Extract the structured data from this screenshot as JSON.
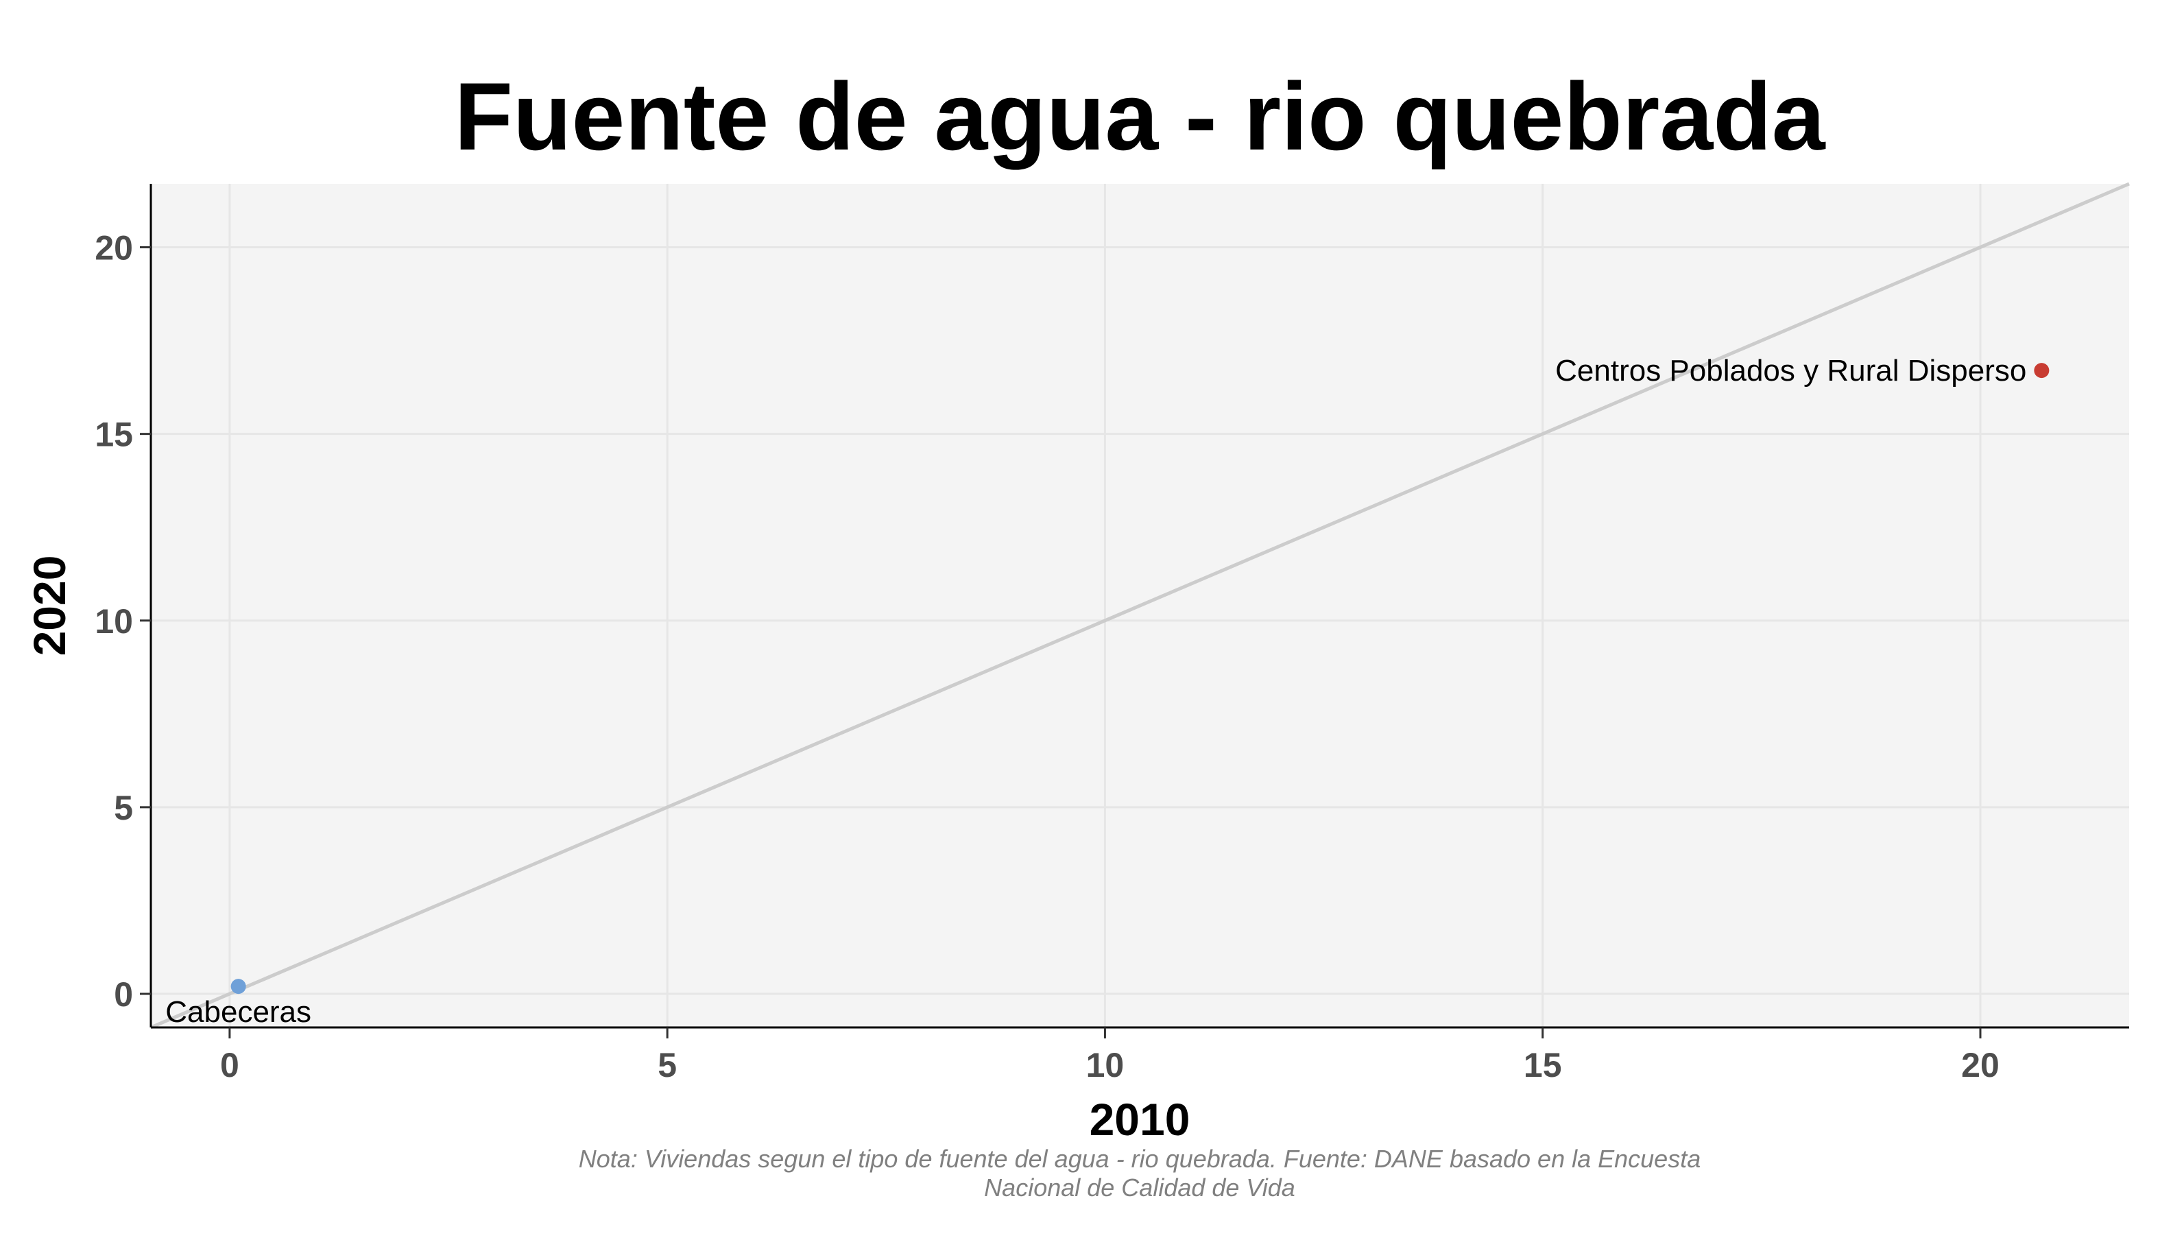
{
  "chart_data": {
    "type": "scatter",
    "title": "Fuente de agua - rio quebrada",
    "xlabel": "2010",
    "ylabel": "2020",
    "caption_line1": "Nota: Viviendas segun el tipo de fuente del agua - rio quebrada. Fuente: DANE basado en la Encuesta",
    "caption_line2": "Nacional de Calidad de Vida",
    "xlim": [
      -0.9,
      21.7
    ],
    "ylim": [
      -0.9,
      21.7
    ],
    "xticks": [
      0,
      5,
      10,
      15,
      20
    ],
    "yticks": [
      0,
      5,
      10,
      15,
      20
    ],
    "reference_line": "y = x",
    "grid": true,
    "panel_background": "#f4f4f4",
    "grid_color": "#e6e6e6",
    "line_color": "#cccccc",
    "points": [
      {
        "label": "Cabeceras",
        "x": 0.1,
        "y": 0.2,
        "color": "#6fa0d8",
        "label_side": "below"
      },
      {
        "label": "Centros Poblados y Rural Disperso",
        "x": 20.7,
        "y": 16.7,
        "color": "#c83c32",
        "label_side": "left"
      }
    ]
  }
}
